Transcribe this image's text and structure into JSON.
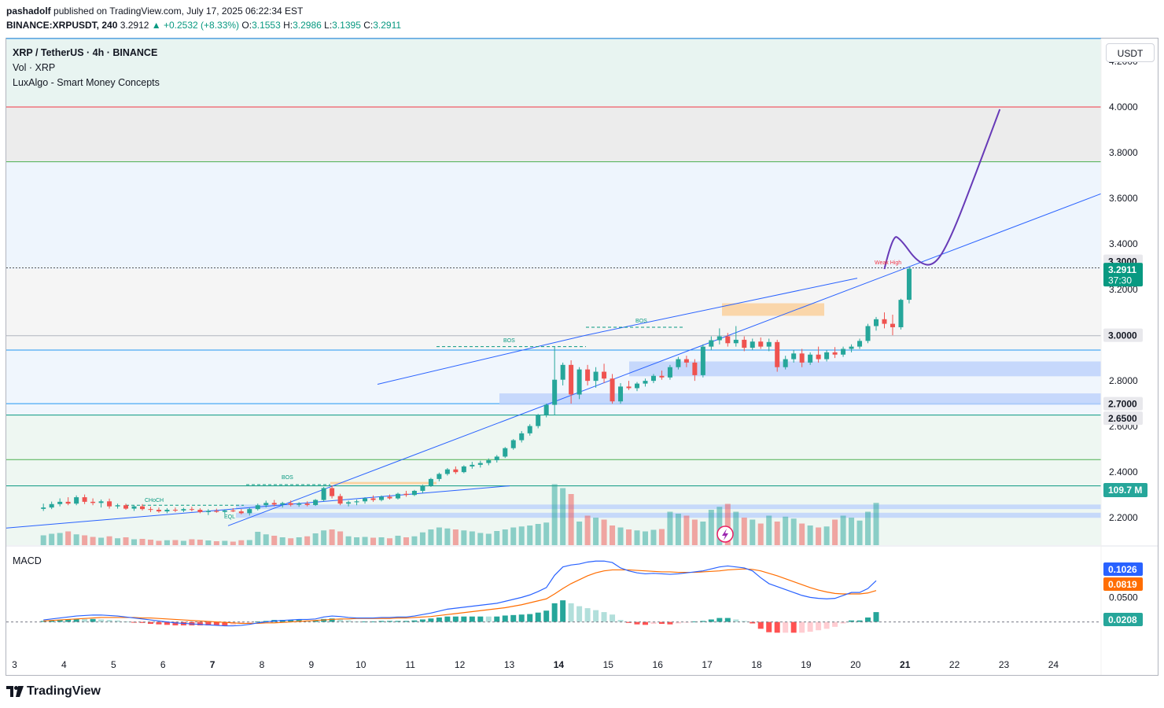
{
  "header": {
    "author": "pashadolf",
    "published_text": "published on TradingView.com, July 17, 2025 06:22:34 EST",
    "symbol": "BINANCE:XRPUSDT, 240",
    "last": "3.2912",
    "change": "▲ +0.2532 (+8.33%)",
    "o_label": "O:",
    "o": "3.1553",
    "h_label": "H:",
    "h": "3.2986",
    "l_label": "L:",
    "l": "3.1395",
    "c_label": "C:",
    "c": "3.2911"
  },
  "legend": {
    "title": "XRP / TetherUS · 4h · BINANCE",
    "volume": "Vol · XRP",
    "indicator": "LuxAlgo - Smart Money Concepts",
    "macd": "MACD"
  },
  "axis": {
    "unit": "USDT"
  },
  "footer": {
    "brand": "TradingView"
  },
  "colors": {
    "up": "#26a69a",
    "down": "#ef5350",
    "vol_up": "#26a69a",
    "vol_down": "#ef5350",
    "macd_line": "#2962ff",
    "signal_line": "#ff6d00",
    "forecast": "#673ab7",
    "trendline": "#2962ff",
    "demand_zone": "#bbd1fb",
    "supply_block": "#fbd3a2"
  },
  "chart_data": [
    {
      "type": "candlestick",
      "title": "XRP / TetherUS · 4h · BINANCE",
      "ylim": [
        2.08,
        4.3
      ],
      "y_ticks": [
        "4.2000",
        "4.0000",
        "3.8000",
        "3.6000",
        "3.4000",
        "3.2000",
        "3.0000",
        "2.8000",
        "2.6000",
        "2.4000",
        "2.2000"
      ],
      "x_ticks": [
        "3",
        "4",
        "5",
        "6",
        "7",
        "8",
        "9",
        "10",
        "11",
        "12",
        "13",
        "14",
        "15",
        "16",
        "17",
        "18",
        "19",
        "20",
        "21",
        "22",
        "23",
        "24"
      ],
      "x_ticks_bold": [
        "7",
        "14",
        "21"
      ],
      "candles": [
        {
          "o": 2.239,
          "h": 2.262,
          "l": 2.23,
          "c": 2.245
        },
        {
          "o": 2.245,
          "h": 2.271,
          "l": 2.238,
          "c": 2.26
        },
        {
          "o": 2.26,
          "h": 2.285,
          "l": 2.25,
          "c": 2.27
        },
        {
          "o": 2.27,
          "h": 2.29,
          "l": 2.255,
          "c": 2.262
        },
        {
          "o": 2.262,
          "h": 2.298,
          "l": 2.255,
          "c": 2.29
        },
        {
          "o": 2.29,
          "h": 2.302,
          "l": 2.26,
          "c": 2.27
        },
        {
          "o": 2.27,
          "h": 2.285,
          "l": 2.255,
          "c": 2.265
        },
        {
          "o": 2.265,
          "h": 2.28,
          "l": 2.245,
          "c": 2.272
        },
        {
          "o": 2.272,
          "h": 2.284,
          "l": 2.24,
          "c": 2.25
        },
        {
          "o": 2.25,
          "h": 2.262,
          "l": 2.24,
          "c": 2.255
        },
        {
          "o": 2.255,
          "h": 2.262,
          "l": 2.235,
          "c": 2.24
        },
        {
          "o": 2.24,
          "h": 2.255,
          "l": 2.23,
          "c": 2.25
        },
        {
          "o": 2.25,
          "h": 2.26,
          "l": 2.232,
          "c": 2.238
        },
        {
          "o": 2.238,
          "h": 2.248,
          "l": 2.225,
          "c": 2.235
        },
        {
          "o": 2.235,
          "h": 2.245,
          "l": 2.222,
          "c": 2.228
        },
        {
          "o": 2.228,
          "h": 2.242,
          "l": 2.22,
          "c": 2.235
        },
        {
          "o": 2.235,
          "h": 2.245,
          "l": 2.225,
          "c": 2.232
        },
        {
          "o": 2.232,
          "h": 2.244,
          "l": 2.225,
          "c": 2.238
        },
        {
          "o": 2.238,
          "h": 2.248,
          "l": 2.228,
          "c": 2.235
        },
        {
          "o": 2.235,
          "h": 2.242,
          "l": 2.22,
          "c": 2.225
        },
        {
          "o": 2.225,
          "h": 2.238,
          "l": 2.212,
          "c": 2.23
        },
        {
          "o": 2.23,
          "h": 2.24,
          "l": 2.222,
          "c": 2.226
        },
        {
          "o": 2.226,
          "h": 2.236,
          "l": 2.215,
          "c": 2.232
        },
        {
          "o": 2.232,
          "h": 2.242,
          "l": 2.225,
          "c": 2.228
        },
        {
          "o": 2.228,
          "h": 2.238,
          "l": 2.215,
          "c": 2.22
        },
        {
          "o": 2.22,
          "h": 2.245,
          "l": 2.21,
          "c": 2.238
        },
        {
          "o": 2.238,
          "h": 2.262,
          "l": 2.232,
          "c": 2.255
        },
        {
          "o": 2.255,
          "h": 2.275,
          "l": 2.245,
          "c": 2.265
        },
        {
          "o": 2.265,
          "h": 2.278,
          "l": 2.25,
          "c": 2.258
        },
        {
          "o": 2.258,
          "h": 2.27,
          "l": 2.245,
          "c": 2.264
        },
        {
          "o": 2.264,
          "h": 2.276,
          "l": 2.25,
          "c": 2.257
        },
        {
          "o": 2.257,
          "h": 2.268,
          "l": 2.248,
          "c": 2.262
        },
        {
          "o": 2.262,
          "h": 2.272,
          "l": 2.25,
          "c": 2.256
        },
        {
          "o": 2.256,
          "h": 2.282,
          "l": 2.252,
          "c": 2.278
        },
        {
          "o": 2.278,
          "h": 2.335,
          "l": 2.272,
          "c": 2.33
        },
        {
          "o": 2.33,
          "h": 2.342,
          "l": 2.285,
          "c": 2.295
        },
        {
          "o": 2.295,
          "h": 2.305,
          "l": 2.255,
          "c": 2.262
        },
        {
          "o": 2.262,
          "h": 2.275,
          "l": 2.25,
          "c": 2.268
        },
        {
          "o": 2.268,
          "h": 2.28,
          "l": 2.255,
          "c": 2.272
        },
        {
          "o": 2.272,
          "h": 2.29,
          "l": 2.262,
          "c": 2.285
        },
        {
          "o": 2.285,
          "h": 2.298,
          "l": 2.27,
          "c": 2.278
        },
        {
          "o": 2.278,
          "h": 2.298,
          "l": 2.272,
          "c": 2.292
        },
        {
          "o": 2.292,
          "h": 2.302,
          "l": 2.28,
          "c": 2.285
        },
        {
          "o": 2.285,
          "h": 2.31,
          "l": 2.28,
          "c": 2.305
        },
        {
          "o": 2.305,
          "h": 2.318,
          "l": 2.292,
          "c": 2.3
        },
        {
          "o": 2.3,
          "h": 2.322,
          "l": 2.295,
          "c": 2.318
        },
        {
          "o": 2.318,
          "h": 2.345,
          "l": 2.308,
          "c": 2.34
        },
        {
          "o": 2.34,
          "h": 2.375,
          "l": 2.335,
          "c": 2.37
        },
        {
          "o": 2.37,
          "h": 2.398,
          "l": 2.36,
          "c": 2.392
        },
        {
          "o": 2.392,
          "h": 2.418,
          "l": 2.385,
          "c": 2.412
        },
        {
          "o": 2.412,
          "h": 2.425,
          "l": 2.392,
          "c": 2.4
        },
        {
          "o": 2.4,
          "h": 2.43,
          "l": 2.395,
          "c": 2.425
        },
        {
          "o": 2.425,
          "h": 2.445,
          "l": 2.415,
          "c": 2.432
        },
        {
          "o": 2.432,
          "h": 2.45,
          "l": 2.42,
          "c": 2.44
        },
        {
          "o": 2.44,
          "h": 2.46,
          "l": 2.43,
          "c": 2.452
        },
        {
          "o": 2.452,
          "h": 2.475,
          "l": 2.442,
          "c": 2.468
        },
        {
          "o": 2.468,
          "h": 2.51,
          "l": 2.462,
          "c": 2.505
        },
        {
          "o": 2.505,
          "h": 2.545,
          "l": 2.498,
          "c": 2.54
        },
        {
          "o": 2.54,
          "h": 2.58,
          "l": 2.53,
          "c": 2.57
        },
        {
          "o": 2.57,
          "h": 2.61,
          "l": 2.56,
          "c": 2.602
        },
        {
          "o": 2.602,
          "h": 2.655,
          "l": 2.592,
          "c": 2.65
        },
        {
          "o": 2.65,
          "h": 2.7,
          "l": 2.64,
          "c": 2.695
        },
        {
          "o": 2.695,
          "h": 2.95,
          "l": 2.65,
          "c": 2.805
        },
        {
          "o": 2.805,
          "h": 2.88,
          "l": 2.78,
          "c": 2.87
        },
        {
          "o": 2.87,
          "h": 2.89,
          "l": 2.7,
          "c": 2.74
        },
        {
          "o": 2.74,
          "h": 2.86,
          "l": 2.72,
          "c": 2.85
        },
        {
          "o": 2.85,
          "h": 2.87,
          "l": 2.78,
          "c": 2.8
        },
        {
          "o": 2.8,
          "h": 2.86,
          "l": 2.77,
          "c": 2.84
        },
        {
          "o": 2.84,
          "h": 2.875,
          "l": 2.79,
          "c": 2.81
        },
        {
          "o": 2.81,
          "h": 2.83,
          "l": 2.7,
          "c": 2.71
        },
        {
          "o": 2.71,
          "h": 2.79,
          "l": 2.7,
          "c": 2.775
        },
        {
          "o": 2.775,
          "h": 2.8,
          "l": 2.76,
          "c": 2.768
        },
        {
          "o": 2.768,
          "h": 2.795,
          "l": 2.755,
          "c": 2.788
        },
        {
          "o": 2.788,
          "h": 2.81,
          "l": 2.775,
          "c": 2.8
        },
        {
          "o": 2.8,
          "h": 2.83,
          "l": 2.79,
          "c": 2.822
        },
        {
          "o": 2.822,
          "h": 2.845,
          "l": 2.805,
          "c": 2.815
        },
        {
          "o": 2.815,
          "h": 2.87,
          "l": 2.805,
          "c": 2.86
        },
        {
          "o": 2.86,
          "h": 2.905,
          "l": 2.85,
          "c": 2.895
        },
        {
          "o": 2.895,
          "h": 2.91,
          "l": 2.86,
          "c": 2.88
        },
        {
          "o": 2.88,
          "h": 2.895,
          "l": 2.8,
          "c": 2.825
        },
        {
          "o": 2.825,
          "h": 2.96,
          "l": 2.815,
          "c": 2.95
        },
        {
          "o": 2.95,
          "h": 2.995,
          "l": 2.935,
          "c": 2.978
        },
        {
          "o": 2.978,
          "h": 3.03,
          "l": 2.96,
          "c": 2.995
        },
        {
          "o": 2.995,
          "h": 3.01,
          "l": 2.95,
          "c": 2.965
        },
        {
          "o": 2.965,
          "h": 3.04,
          "l": 2.95,
          "c": 2.98
        },
        {
          "o": 2.98,
          "h": 2.995,
          "l": 2.93,
          "c": 2.945
        },
        {
          "o": 2.945,
          "h": 2.985,
          "l": 2.935,
          "c": 2.972
        },
        {
          "o": 2.972,
          "h": 2.99,
          "l": 2.94,
          "c": 2.95
        },
        {
          "o": 2.95,
          "h": 2.985,
          "l": 2.93,
          "c": 2.97
        },
        {
          "o": 2.97,
          "h": 2.98,
          "l": 2.84,
          "c": 2.86
        },
        {
          "o": 2.86,
          "h": 2.91,
          "l": 2.85,
          "c": 2.895
        },
        {
          "o": 2.895,
          "h": 2.935,
          "l": 2.88,
          "c": 2.92
        },
        {
          "o": 2.92,
          "h": 2.94,
          "l": 2.86,
          "c": 2.88
        },
        {
          "o": 2.88,
          "h": 2.925,
          "l": 2.87,
          "c": 2.915
        },
        {
          "o": 2.915,
          "h": 2.95,
          "l": 2.88,
          "c": 2.895
        },
        {
          "o": 2.895,
          "h": 2.935,
          "l": 2.885,
          "c": 2.925
        },
        {
          "o": 2.925,
          "h": 2.948,
          "l": 2.9,
          "c": 2.915
        },
        {
          "o": 2.915,
          "h": 2.95,
          "l": 2.905,
          "c": 2.94
        },
        {
          "o": 2.94,
          "h": 2.96,
          "l": 2.925,
          "c": 2.95
        },
        {
          "o": 2.95,
          "h": 2.985,
          "l": 2.94,
          "c": 2.975
        },
        {
          "o": 2.975,
          "h": 3.05,
          "l": 2.965,
          "c": 3.04
        },
        {
          "o": 3.04,
          "h": 3.08,
          "l": 3.02,
          "c": 3.07
        },
        {
          "o": 3.07,
          "h": 3.1,
          "l": 3.03,
          "c": 3.05
        },
        {
          "o": 3.05,
          "h": 3.09,
          "l": 3.0,
          "c": 3.035
        },
        {
          "o": 3.035,
          "h": 3.16,
          "l": 3.025,
          "c": 3.155
        },
        {
          "o": 3.1553,
          "h": 3.2986,
          "l": 3.1395,
          "c": 3.2911
        }
      ],
      "volume_scale": 300,
      "volumes": [
        50,
        58,
        62,
        70,
        55,
        50,
        42,
        38,
        45,
        35,
        40,
        30,
        32,
        28,
        22,
        25,
        26,
        22,
        30,
        28,
        24,
        20,
        22,
        18,
        25,
        26,
        68,
        55,
        48,
        40,
        35,
        40,
        45,
        60,
        75,
        80,
        70,
        45,
        40,
        42,
        38,
        40,
        35,
        48,
        40,
        45,
        65,
        80,
        90,
        85,
        80,
        75,
        70,
        62,
        58,
        72,
        80,
        90,
        95,
        100,
        108,
        115,
        310,
        290,
        260,
        120,
        150,
        140,
        130,
        100,
        90,
        80,
        75,
        70,
        78,
        82,
        170,
        160,
        150,
        130,
        120,
        180,
        195,
        210,
        170,
        140,
        130,
        110,
        150,
        120,
        145,
        135,
        110,
        100,
        90,
        95,
        130,
        150,
        140,
        125,
        170,
        215
      ],
      "volume_last": "109.7 M",
      "price_lines": [
        {
          "label": "3.3000",
          "value": 3.3
        },
        {
          "label": "3.2911",
          "value": 3.2911,
          "sub": "37:30"
        },
        {
          "label": "3.0000",
          "value": 3.0
        },
        {
          "label": "2.7000",
          "value": 2.7
        },
        {
          "label": "2.6500",
          "value": 2.65
        }
      ],
      "annotations": [
        "BOS",
        "BOS",
        "BOS",
        "CHoCH",
        "EQL",
        "Weak High"
      ],
      "forecast_path": [
        [
          102,
          3.29
        ],
        [
          103,
          3.44
        ],
        [
          104,
          3.42
        ],
        [
          106,
          3.32
        ],
        [
          108,
          3.3
        ],
        [
          110,
          3.42
        ],
        [
          113,
          3.7
        ],
        [
          116,
          3.99
        ]
      ]
    },
    {
      "type": "macd",
      "title": "MACD",
      "ylim": [
        -0.06,
        0.15
      ],
      "y_ticks": [
        "0.0500",
        "0.0000"
      ],
      "macd": [
        0.004,
        0.006,
        0.008,
        0.01,
        0.012,
        0.013,
        0.014,
        0.014,
        0.013,
        0.012,
        0.01,
        0.008,
        0.006,
        0.004,
        0.002,
        0.0,
        -0.002,
        -0.003,
        -0.004,
        -0.005,
        -0.006,
        -0.007,
        -0.008,
        -0.008,
        -0.007,
        -0.005,
        -0.002,
        0.0,
        0.002,
        0.003,
        0.004,
        0.005,
        0.005,
        0.006,
        0.01,
        0.012,
        0.011,
        0.009,
        0.008,
        0.008,
        0.008,
        0.009,
        0.009,
        0.01,
        0.01,
        0.012,
        0.015,
        0.018,
        0.022,
        0.026,
        0.028,
        0.03,
        0.032,
        0.034,
        0.036,
        0.038,
        0.042,
        0.046,
        0.05,
        0.055,
        0.062,
        0.07,
        0.095,
        0.112,
        0.116,
        0.118,
        0.122,
        0.124,
        0.124,
        0.121,
        0.11,
        0.104,
        0.1,
        0.098,
        0.099,
        0.098,
        0.097,
        0.098,
        0.1,
        0.102,
        0.104,
        0.108,
        0.112,
        0.114,
        0.112,
        0.11,
        0.104,
        0.09,
        0.078,
        0.072,
        0.066,
        0.06,
        0.054,
        0.05,
        0.048,
        0.047,
        0.048,
        0.054,
        0.06,
        0.06,
        0.068,
        0.084
      ],
      "signal": [
        0.002,
        0.003,
        0.004,
        0.005,
        0.006,
        0.007,
        0.008,
        0.009,
        0.009,
        0.009,
        0.009,
        0.009,
        0.008,
        0.008,
        0.007,
        0.006,
        0.005,
        0.004,
        0.003,
        0.002,
        0.001,
        0.0,
        -0.001,
        -0.002,
        -0.003,
        -0.003,
        -0.003,
        -0.002,
        -0.002,
        -0.001,
        0.0,
        0.001,
        0.002,
        0.003,
        0.004,
        0.005,
        0.006,
        0.006,
        0.007,
        0.007,
        0.007,
        0.007,
        0.007,
        0.008,
        0.008,
        0.009,
        0.01,
        0.011,
        0.013,
        0.015,
        0.017,
        0.019,
        0.021,
        0.023,
        0.025,
        0.027,
        0.029,
        0.032,
        0.035,
        0.039,
        0.043,
        0.047,
        0.057,
        0.068,
        0.078,
        0.086,
        0.094,
        0.1,
        0.104,
        0.106,
        0.106,
        0.106,
        0.105,
        0.104,
        0.103,
        0.102,
        0.102,
        0.101,
        0.101,
        0.101,
        0.102,
        0.103,
        0.104,
        0.106,
        0.107,
        0.108,
        0.107,
        0.104,
        0.099,
        0.094,
        0.088,
        0.082,
        0.076,
        0.07,
        0.065,
        0.061,
        0.058,
        0.057,
        0.057,
        0.057,
        0.059,
        0.064
      ],
      "labels": [
        "0.1026",
        "0.0819",
        "0.0208"
      ]
    }
  ]
}
